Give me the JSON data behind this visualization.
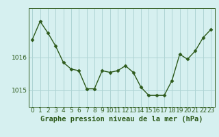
{
  "x": [
    0,
    1,
    2,
    3,
    4,
    5,
    6,
    7,
    8,
    9,
    10,
    11,
    12,
    13,
    14,
    15,
    16,
    17,
    18,
    19,
    20,
    21,
    22,
    23
  ],
  "y": [
    1016.55,
    1017.1,
    1016.75,
    1016.35,
    1015.85,
    1015.65,
    1015.6,
    1015.05,
    1015.05,
    1015.6,
    1015.55,
    1015.6,
    1015.75,
    1015.55,
    1015.1,
    1014.85,
    1014.85,
    1014.85,
    1015.3,
    1016.1,
    1015.95,
    1016.2,
    1016.6,
    1016.85
  ],
  "line_color": "#2d5a1b",
  "marker": "D",
  "marker_size": 2.5,
  "bg_color": "#d6f0f0",
  "grid_color": "#aed4d4",
  "xlabel": "Graphe pression niveau de la mer (hPa)",
  "xlabel_fontsize": 7.5,
  "ylim": [
    1014.5,
    1017.5
  ],
  "yticks": [
    1015,
    1016
  ],
  "xticks": [
    0,
    1,
    2,
    3,
    4,
    5,
    6,
    7,
    8,
    9,
    10,
    11,
    12,
    13,
    14,
    15,
    16,
    17,
    18,
    19,
    20,
    21,
    22,
    23
  ],
  "tick_fontsize": 6.5,
  "line_width": 1.0
}
